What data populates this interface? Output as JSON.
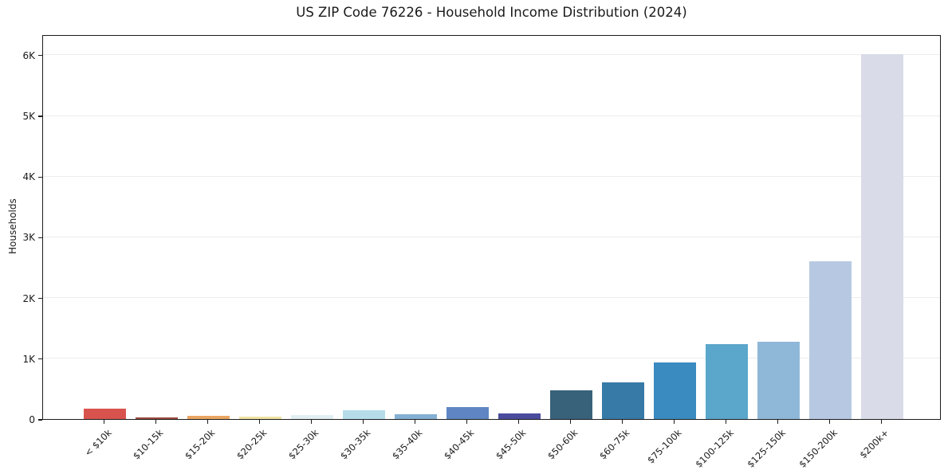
{
  "chart_data": {
    "type": "bar",
    "title": "US ZIP Code 76226 - Household Income Distribution (2024)",
    "xlabel": "",
    "ylabel": "Households",
    "categories": [
      "< $10k",
      "$10-15k",
      "$15-20k",
      "$20-25k",
      "$25-30k",
      "$30-35k",
      "$35-40k",
      "$40-45k",
      "$45-50k",
      "$50-60k",
      "$60-75k",
      "$75-100k",
      "$100-125k",
      "$125-150k",
      "$150-200k",
      "$200k+"
    ],
    "values": [
      170,
      25,
      50,
      40,
      70,
      140,
      75,
      200,
      90,
      470,
      600,
      930,
      1230,
      1280,
      2600,
      6010
    ],
    "bar_colors": [
      "#d9534e",
      "#9c4a3c",
      "#eaa661",
      "#efe3a3",
      "#e1eff3",
      "#b6dcea",
      "#84b0d3",
      "#5f86c3",
      "#4a4b9d",
      "#38617a",
      "#3779a7",
      "#398bc0",
      "#5ba6cb",
      "#8fb8d8",
      "#b7c9e2",
      "#d9dbe8"
    ],
    "ytick_labels": [
      "0",
      "1K",
      "2K",
      "3K",
      "4K",
      "5K",
      "6K"
    ],
    "ytick_values": [
      0,
      1000,
      2000,
      3000,
      4000,
      5000,
      6000
    ],
    "ylim": [
      0,
      6340
    ],
    "grid": "horizontal",
    "gridline_color": "#ececec",
    "axis_color": "#1c1c1c",
    "xtick_rotation_deg": -45,
    "legend": "none"
  }
}
